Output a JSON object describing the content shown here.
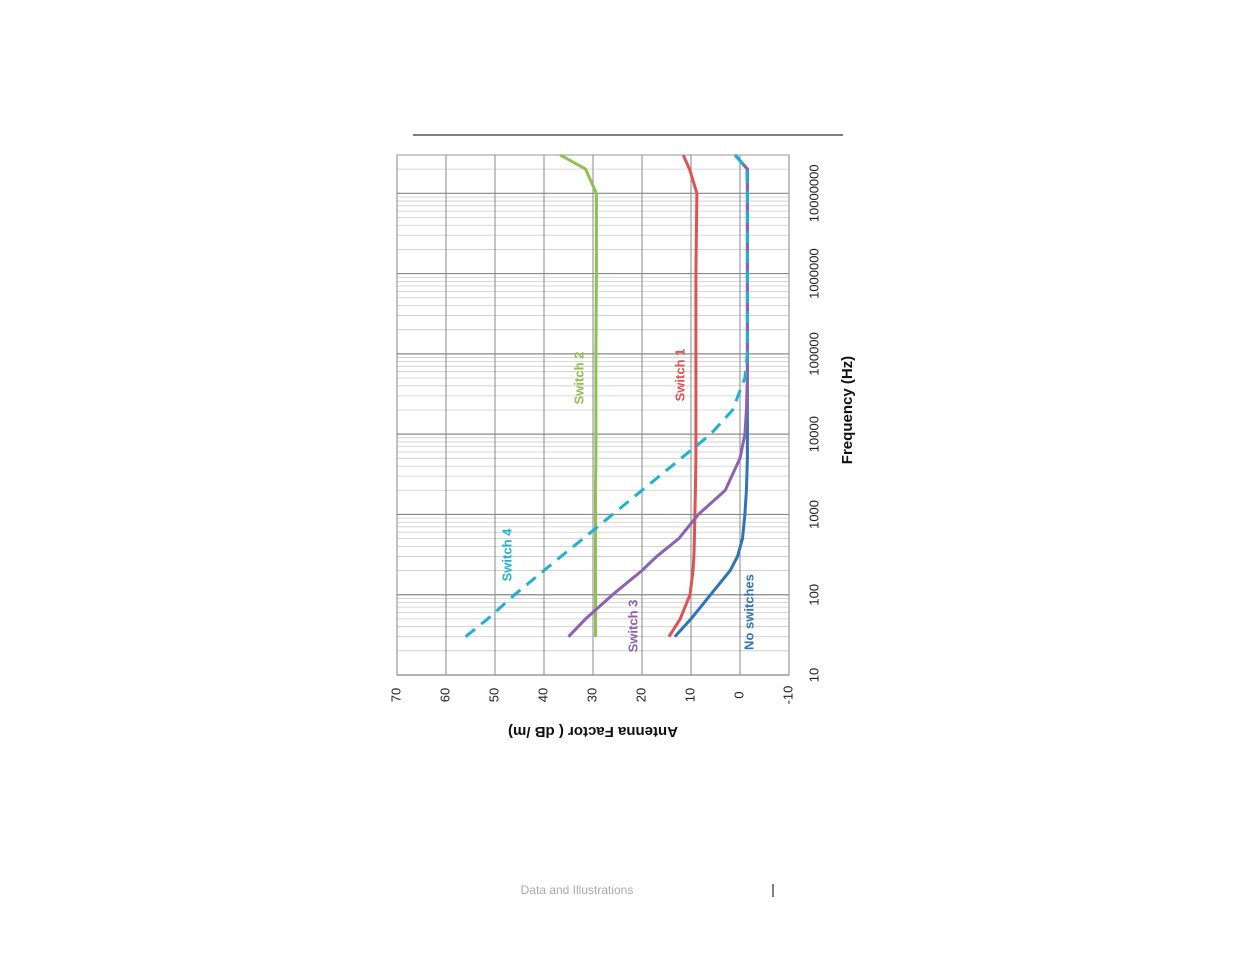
{
  "chart_data": {
    "type": "line",
    "x_label": "Frequency (Hz)",
    "y_label": "Antenna Factor ( dB /m)",
    "x": [
      30,
      50,
      100,
      200,
      300,
      500,
      1000,
      2000,
      5000,
      10000,
      20000,
      50000,
      100000,
      1000000,
      10000000,
      20000000,
      30000000
    ],
    "series": [
      {
        "name": "No switches",
        "color": "#2e75b6",
        "dash": false,
        "values": [
          13.3,
          10,
          6,
          2,
          0.5,
          -0.5,
          -1,
          -1.3,
          -1.5,
          -1.5,
          -1.5,
          -1.5,
          -1.5,
          -1.5,
          -1.5,
          -1.5,
          1
        ]
      },
      {
        "name": "Switch 1",
        "color": "#e05252",
        "dash": false,
        "values": [
          14.5,
          12.2,
          10.2,
          9.6,
          9.4,
          9.3,
          9.2,
          9.1,
          9,
          9,
          9,
          9,
          9,
          9,
          8.8,
          10.3,
          11.6
        ]
      },
      {
        "name": "Switch 2",
        "color": "#8fc050",
        "dash": false,
        "values": [
          29.5,
          29.5,
          29.5,
          29.5,
          29.5,
          29.5,
          29.5,
          29.5,
          29.4,
          29.4,
          29.4,
          29.4,
          29.4,
          29.3,
          29.3,
          31.5,
          36.7
        ]
      },
      {
        "name": "Switch 3",
        "color": "#8c62b0",
        "dash": false,
        "values": [
          35,
          31.5,
          26,
          20,
          17,
          12.5,
          8.5,
          3,
          0,
          -1,
          -1.3,
          -1.5,
          -1.5,
          -1.5,
          -1.5,
          -1.5,
          1
        ]
      },
      {
        "name": "Switch 4",
        "color": "#1fb0d4",
        "dash": true,
        "values": [
          56,
          51.5,
          46,
          40,
          36.5,
          32,
          26,
          20,
          12,
          6,
          1.5,
          -1,
          -1.5,
          -1.5,
          -1.5,
          -1.4,
          1
        ]
      }
    ],
    "xlim": [
      10,
      30000000
    ],
    "xscale": "log",
    "xticks": [
      10,
      100,
      1000,
      10000,
      100000,
      1000000,
      10000000
    ],
    "ylim": [
      -10,
      70
    ],
    "yticks": [
      70,
      60,
      50,
      40,
      30,
      20,
      10,
      0,
      -10
    ],
    "grid": true,
    "rotation": -90
  },
  "footer": "Data and Illustrations"
}
